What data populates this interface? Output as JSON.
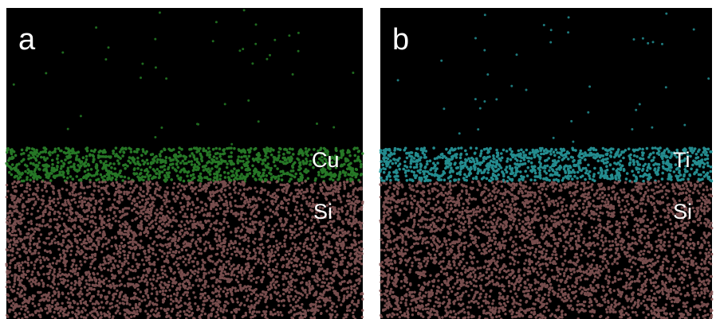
{
  "panels": [
    {
      "label": "a",
      "layers": [
        "Cu",
        "Si"
      ]
    },
    {
      "label": "b",
      "layers": [
        "Ti",
        "Si"
      ]
    }
  ]
}
